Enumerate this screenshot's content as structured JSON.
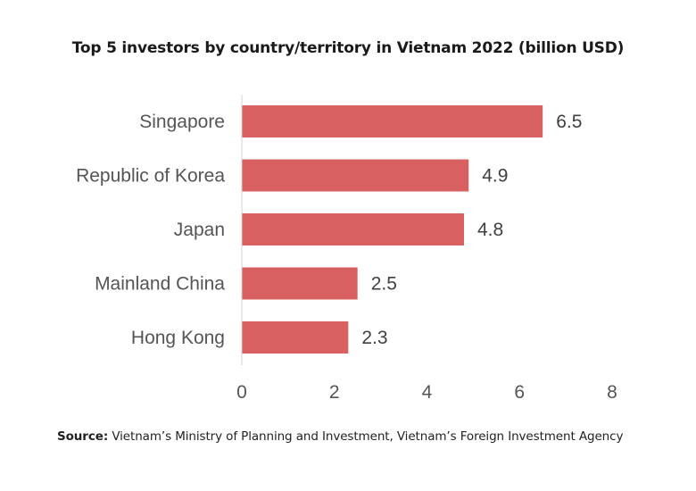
{
  "chart_data": {
    "type": "bar",
    "orientation": "horizontal",
    "title": "Top 5 investors by country/territory in Vietnam 2022 (billion USD)",
    "categories": [
      "Singapore",
      "Republic of Korea",
      "Japan",
      "Mainland China",
      "Hong Kong"
    ],
    "values": [
      6.5,
      4.9,
      4.8,
      2.5,
      2.3
    ],
    "value_labels": [
      "6.5",
      "4.9",
      "4.8",
      "2.5",
      "2.3"
    ],
    "xlim": [
      0,
      8
    ],
    "xticks": [
      0,
      2,
      4,
      6,
      8
    ],
    "xlabel": "",
    "ylabel": "",
    "grid": false,
    "bar_color": "#d96060"
  },
  "source": {
    "label": "Source:",
    "text": " Vietnam’s Ministry of Planning and Investment, Vietnam’s Foreign Investment Agency"
  }
}
